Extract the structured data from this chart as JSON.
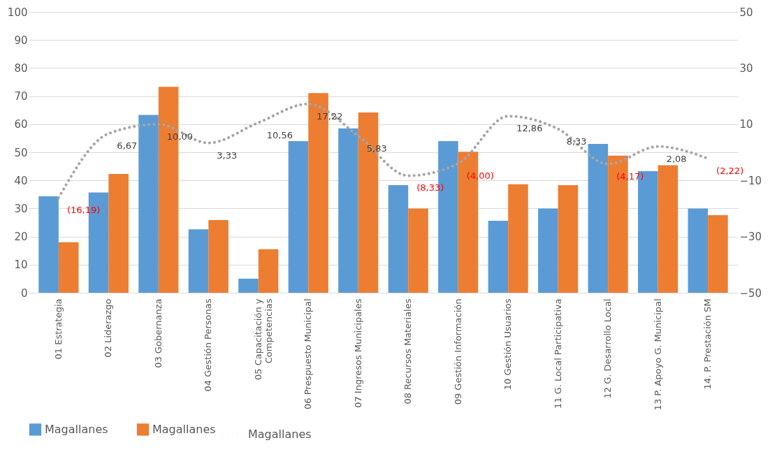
{
  "chart_data": {
    "type": "bar",
    "categories": [
      "01 Estrategia",
      "02 Liderazgo",
      "03 Gobernanza",
      "04 Gestión Personas",
      "05 Capacitación y\nCompetencias",
      "06 Prespuesto Municipal",
      "07 Ingresos Municipales",
      "08 Recursos Materiales",
      "09 Gestión Información",
      "10 Gestión Usuarios",
      "11 G. Local Participativa",
      "12 G. Desarrollo Local",
      "13 P. Apoyo G. Municipal",
      "14. P. Prestación SM"
    ],
    "series": [
      {
        "name": "Magallanes",
        "color": "#5b9bd5",
        "values": [
          34.3,
          35.7,
          63.3,
          22.6,
          5.0,
          54.0,
          58.5,
          38.3,
          54.0,
          25.6,
          30.0,
          53.0,
          43.3,
          30.0
        ]
      },
      {
        "name": "Magallanes",
        "color": "#ed7d31",
        "values": [
          18.0,
          42.3,
          73.3,
          25.9,
          15.5,
          71.1,
          64.2,
          30.0,
          50.2,
          38.6,
          38.3,
          48.8,
          45.4,
          27.6
        ]
      },
      {
        "name": "Magallanes",
        "type": "line",
        "axis": "y2",
        "color": "#a5a5a5",
        "line_style": "dotted",
        "values": [
          -16.19,
          6.67,
          10.0,
          3.33,
          10.56,
          17.22,
          5.83,
          -8.33,
          -4.0,
          12.86,
          8.33,
          -4.17,
          2.08,
          -2.22
        ],
        "value_labels": [
          "(16,19)",
          "6,67",
          "10,00",
          "3,33",
          "10,56",
          "17,22",
          "5,83",
          "(8,33)",
          "(4,00)",
          "12,86",
          "8,33",
          "(4,17)",
          "2,08",
          "(2,22)"
        ]
      }
    ],
    "ylim": [
      0,
      100
    ],
    "yticks": [
      0,
      10,
      20,
      30,
      40,
      50,
      60,
      70,
      80,
      90,
      100
    ],
    "y2lim": [
      -50,
      50
    ],
    "y2ticks": [
      -50,
      -30,
      -10,
      10,
      30,
      50
    ],
    "grid": "y",
    "legend": "bottom"
  }
}
